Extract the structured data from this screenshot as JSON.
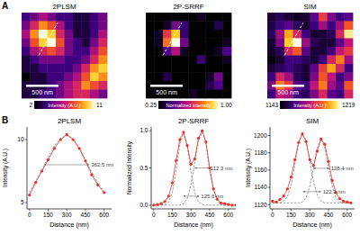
{
  "panel_labels": [
    "A",
    "B"
  ],
  "chart_data": [
    {
      "type": "heatmap",
      "title": "2PLSM",
      "scale_bar": "500 nm",
      "cells": [
        [
          4,
          5,
          6,
          5,
          4,
          4,
          3,
          3,
          4,
          5
        ],
        [
          5,
          7,
          9,
          8,
          6,
          4,
          3,
          3,
          4,
          5
        ],
        [
          6,
          9,
          11,
          10,
          7,
          5,
          3,
          3,
          4,
          6
        ],
        [
          5,
          8,
          10,
          11,
          8,
          5,
          4,
          3,
          5,
          7
        ],
        [
          4,
          6,
          7,
          8,
          7,
          5,
          4,
          4,
          6,
          8
        ],
        [
          3,
          4,
          5,
          5,
          5,
          4,
          4,
          5,
          7,
          9
        ],
        [
          3,
          3,
          4,
          4,
          4,
          4,
          5,
          7,
          9,
          10
        ],
        [
          2,
          3,
          3,
          4,
          4,
          5,
          6,
          8,
          10,
          9
        ],
        [
          3,
          3,
          3,
          4,
          5,
          6,
          7,
          9,
          8,
          7
        ],
        [
          3,
          3,
          4,
          4,
          5,
          6,
          7,
          7,
          6,
          5
        ]
      ],
      "colorbar_range": [
        2,
        11
      ],
      "colorbar_ticks": [
        2,
        11
      ],
      "colorbar_label": "Intensity (A.U.)"
    },
    {
      "type": "heatmap",
      "title": "2P-SRRF",
      "scale_bar": "500 nm",
      "cells": [
        [
          0.25,
          0.25,
          0.25,
          0.25,
          0.25,
          0.25,
          0.3,
          0.25,
          0.25,
          0.25
        ],
        [
          0.25,
          0.25,
          0.3,
          0.5,
          0.4,
          0.25,
          0.25,
          0.25,
          0.35,
          0.25
        ],
        [
          0.25,
          0.3,
          0.7,
          0.9,
          0.4,
          0.25,
          0.25,
          0.25,
          0.25,
          0.25
        ],
        [
          0.25,
          0.3,
          0.8,
          1,
          0.5,
          0.25,
          0.25,
          0.25,
          0.25,
          0.3
        ],
        [
          0.25,
          0.25,
          0.45,
          0.6,
          0.3,
          0.25,
          0.25,
          0.25,
          0.3,
          0.45
        ],
        [
          0.25,
          0.25,
          0.25,
          0.25,
          0.25,
          0.25,
          0.4,
          0.25,
          0.25,
          0.3
        ],
        [
          0.25,
          0.25,
          0.25,
          0.25,
          0.25,
          0.25,
          0.25,
          0.25,
          0.25,
          0.25
        ],
        [
          0.25,
          0.25,
          0.35,
          0.25,
          0.25,
          0.25,
          0.25,
          0.3,
          0.5,
          0.25
        ],
        [
          0.25,
          0.25,
          0.25,
          0.25,
          0.25,
          0.25,
          0.25,
          0.35,
          0.45,
          0.25
        ],
        [
          0.25,
          0.25,
          0.25,
          0.25,
          0.25,
          0.3,
          0.25,
          0.25,
          0.25,
          0.25
        ]
      ],
      "colorbar_range": [
        0.25,
        1
      ],
      "colorbar_ticks": [
        0.25,
        {
          "value": 1,
          "label": "1.00"
        }
      ],
      "colorbar_label": "Normalized Intensity"
    },
    {
      "type": "heatmap",
      "title": "SIM",
      "scale_bar": "500 nm",
      "cells": [
        [
          1150,
          1155,
          1150,
          1148,
          1150,
          1165,
          1190,
          1170,
          1160,
          1165
        ],
        [
          1152,
          1160,
          1165,
          1155,
          1150,
          1160,
          1175,
          1160,
          1175,
          1195
        ],
        [
          1155,
          1175,
          1205,
          1185,
          1160,
          1150,
          1150,
          1155,
          1185,
          1215
        ],
        [
          1150,
          1170,
          1210,
          1219,
          1175,
          1155,
          1150,
          1150,
          1165,
          1180
        ],
        [
          1148,
          1155,
          1185,
          1195,
          1165,
          1150,
          1150,
          1160,
          1180,
          1190
        ],
        [
          1145,
          1150,
          1160,
          1160,
          1155,
          1150,
          1160,
          1185,
          1200,
          1175
        ],
        [
          1150,
          1155,
          1160,
          1155,
          1150,
          1165,
          1190,
          1205,
          1185,
          1160
        ],
        [
          1160,
          1185,
          1175,
          1155,
          1150,
          1170,
          1195,
          1180,
          1160,
          1170
        ],
        [
          1170,
          1200,
          1190,
          1165,
          1160,
          1180,
          1200,
          1175,
          1165,
          1195
        ],
        [
          1160,
          1180,
          1175,
          1160,
          1155,
          1170,
          1185,
          1165,
          1160,
          1185
        ]
      ],
      "colorbar_range": [
        1143,
        1219
      ],
      "colorbar_ticks": [
        1143,
        1219
      ],
      "colorbar_label": "Intensity (A.U.)"
    },
    {
      "type": "line",
      "title": "2PLSM",
      "xlabel": "Distance (nm)",
      "ylabel": "Intensity (A.U.)",
      "x": [
        0,
        50,
        100,
        150,
        200,
        250,
        300,
        350,
        400,
        450,
        500,
        550,
        600
      ],
      "series": [
        {
          "color": "#8c8c8c",
          "line_style": "dashed",
          "values": [
            5.8,
            6.7,
            7.6,
            8.6,
            9.5,
            10.1,
            10.3,
            10.1,
            9.4,
            8.4,
            7.4,
            6.5,
            5.9
          ]
        },
        {
          "color": "#e8312a",
          "line_style": "solid",
          "marker": "circle",
          "values": [
            5.6,
            6.6,
            7.5,
            8.4,
            9.3,
            10.0,
            10.4,
            10.0,
            9.3,
            8.3,
            7.2,
            6.4,
            5.8
          ]
        }
      ],
      "xlim": [
        -20,
        660
      ],
      "ylim": [
        4.5,
        11
      ],
      "xticks": [
        0,
        150,
        300,
        450,
        600
      ],
      "yticks": [
        5,
        10
      ],
      "grid": false,
      "annotations": [
        {
          "text": "362.5 nm",
          "x": [
            118,
            481
          ],
          "y": 8
        }
      ]
    },
    {
      "type": "line",
      "title": "2P-SRRF",
      "xlabel": "Distance (nm)",
      "ylabel": "Normalized Intensity",
      "x": [
        0,
        30,
        60,
        90,
        120,
        150,
        180,
        210,
        240,
        270,
        300,
        330,
        360,
        390,
        420,
        450,
        480,
        510,
        540,
        570,
        600,
        630,
        660
      ],
      "series": [
        {
          "color": "#8c8c8c",
          "line_style": "dashed",
          "values": [
            0,
            0,
            0,
            0.01,
            0.04,
            0.17,
            0.46,
            0.82,
            0.97,
            0.8,
            0.44,
            0.17,
            0.04,
            0.01,
            0,
            0,
            0,
            0,
            0,
            0,
            0,
            0,
            0
          ]
        },
        {
          "color": "#8c8c8c",
          "line_style": "dashed",
          "values": [
            0,
            0,
            0,
            0,
            0,
            0,
            0,
            0,
            0.02,
            0.09,
            0.27,
            0.57,
            0.87,
            0.98,
            0.84,
            0.46,
            0.2,
            0.06,
            0.01,
            0,
            0,
            0,
            0
          ]
        },
        {
          "color": "#e8312a",
          "line_style": "solid",
          "marker": "circle",
          "values": [
            0.0,
            0.01,
            0.02,
            0.05,
            0.12,
            0.3,
            0.6,
            0.88,
            0.98,
            0.8,
            0.55,
            0.62,
            0.9,
            1.0,
            0.85,
            0.5,
            0.22,
            0.08,
            0.03,
            0.02,
            0.01,
            0.0,
            0.0
          ]
        }
      ],
      "xlim": [
        -20,
        660
      ],
      "ylim": [
        -0.05,
        1.05
      ],
      "xticks": [
        0,
        150,
        300,
        450,
        600
      ],
      "yticks": [
        {
          "value": 0,
          "label": "0.0"
        },
        {
          "value": 0.5,
          "label": "0.5"
        },
        {
          "value": 1,
          "label": "1.0"
        }
      ],
      "grid": false,
      "annotations": [
        {
          "text": "112.3 nm",
          "x": [
            330,
            442
          ],
          "y": 0.5
        },
        {
          "text": "125.6 nm",
          "x": [
            240,
            366
          ],
          "y": 0.12
        }
      ]
    },
    {
      "type": "line",
      "title": "SIM",
      "xlabel": "Distance (nm)",
      "ylabel": "Intensity (A.U.)",
      "x": [
        0,
        30,
        60,
        90,
        120,
        150,
        180,
        210,
        240,
        270,
        300,
        330,
        360,
        390,
        420,
        450,
        480,
        510,
        540,
        570,
        600,
        630
      ],
      "series": [
        {
          "color": "#8c8c8c",
          "line_style": "dashed",
          "values": [
            1122,
            1122,
            1122,
            1124,
            1129,
            1143,
            1167,
            1191,
            1202,
            1194,
            1170,
            1146,
            1131,
            1124,
            1122,
            1122,
            1122,
            1122,
            1122,
            1122,
            1122,
            1122
          ]
        },
        {
          "color": "#8c8c8c",
          "line_style": "dashed",
          "values": [
            1122,
            1122,
            1122,
            1122,
            1122,
            1122,
            1122,
            1122,
            1123,
            1128,
            1141,
            1163,
            1186,
            1196,
            1186,
            1163,
            1141,
            1128,
            1123,
            1122,
            1122,
            1122
          ]
        },
        {
          "color": "#e8312a",
          "line_style": "solid",
          "marker": "circle",
          "values": [
            1124,
            1123,
            1126,
            1130,
            1138,
            1152,
            1172,
            1192,
            1202,
            1193,
            1172,
            1165,
            1182,
            1196,
            1190,
            1170,
            1148,
            1134,
            1127,
            1124,
            1123,
            1122
          ]
        }
      ],
      "xlim": [
        -20,
        660
      ],
      "ylim": [
        1115,
        1210
      ],
      "xticks": [
        0,
        150,
        300,
        450,
        600
      ],
      "yticks": [
        1120,
        1140,
        1160,
        1180,
        1200
      ],
      "grid": false,
      "annotations": [
        {
          "text": "128.4 nm",
          "x": [
            330,
            455
          ],
          "y": 1162
        },
        {
          "text": "122.3 nm",
          "x": [
            245,
            390
          ],
          "y": 1135
        }
      ]
    }
  ]
}
